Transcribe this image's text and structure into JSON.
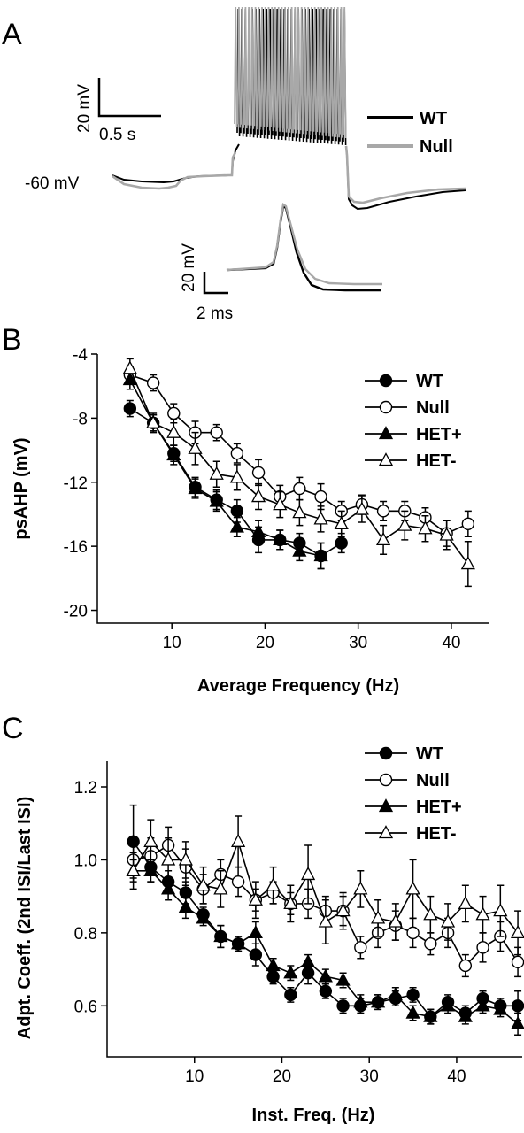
{
  "panels": {
    "A": "A",
    "B": "B",
    "C": "C"
  },
  "trace_panel": {
    "scale_bar_voltage": "20 mV",
    "scale_bar_time": "0.5 s",
    "resting_label": "-60 mV",
    "inset_scale_voltage": "20 mV",
    "inset_scale_time": "2 ms",
    "legend": [
      {
        "label": "WT",
        "color": "#000000"
      },
      {
        "label": "Null",
        "color": "#a8a8a8"
      }
    ]
  },
  "chart_data": [
    {
      "type": "line",
      "panel": "B",
      "xlabel": "Average Frequency (Hz)",
      "ylabel": "psAHP (mV)",
      "xlim": [
        2,
        44
      ],
      "ylim": [
        -20.8,
        -4
      ],
      "xticks": [
        10,
        20,
        30,
        40
      ],
      "yticks": [
        -4,
        -8,
        -12,
        -16,
        -20
      ],
      "grid": false,
      "legend_position": "top-right",
      "series": [
        {
          "name": "WT",
          "marker": "filled-circle",
          "x": [
            5.5,
            8,
            10.2,
            12.5,
            14.8,
            17,
            19.3,
            21.6,
            23.7,
            26,
            28.2
          ],
          "y": [
            -7.4,
            -8.3,
            -10.2,
            -12.3,
            -13.1,
            -13.8,
            -15.6,
            -15.6,
            -15.8,
            -16.6,
            -15.8
          ],
          "err": [
            0.5,
            0.5,
            0.5,
            0.6,
            0.6,
            0.7,
            0.8,
            0.6,
            0.6,
            0.8,
            0.6
          ]
        },
        {
          "name": "Null",
          "marker": "open-circle",
          "x": [
            5.5,
            8,
            10.2,
            12.5,
            14.8,
            17,
            19.3,
            21.6,
            23.7,
            26,
            28.2,
            30.4,
            32.7,
            35,
            37.2,
            39.5,
            41.8
          ],
          "y": [
            -5.3,
            -5.8,
            -7.7,
            -8.9,
            -8.9,
            -10.2,
            -11.4,
            -12.9,
            -12.4,
            -12.9,
            -13.8,
            -13.4,
            -13.8,
            -13.8,
            -14.2,
            -15.2,
            -14.6
          ],
          "err": [
            0.5,
            0.5,
            0.6,
            0.7,
            0.5,
            0.6,
            0.8,
            0.7,
            0.7,
            0.8,
            0.6,
            0.6,
            0.6,
            0.6,
            0.6,
            0.8,
            0.8
          ]
        },
        {
          "name": "HET+",
          "marker": "filled-triangle",
          "x": [
            5.5,
            8,
            10.2,
            12.5,
            14.8,
            17,
            19.3,
            21.6,
            23.7,
            26
          ],
          "y": [
            -5.6,
            -8.3,
            -10.3,
            -12.4,
            -13.2,
            -14.8,
            -15.1,
            -15.6,
            -16.3,
            -16.6
          ],
          "err": [
            0.6,
            0.5,
            0.6,
            0.6,
            0.6,
            0.6,
            0.7,
            0.6,
            0.6,
            0.8
          ]
        },
        {
          "name": "HET-",
          "marker": "open-triangle",
          "x": [
            5.5,
            8,
            10.2,
            12.5,
            14.8,
            17,
            19.3,
            21.6,
            23.7,
            26,
            28.2,
            30.4,
            32.7,
            35,
            37.2,
            39.5,
            41.8
          ],
          "y": [
            -4.9,
            -8.3,
            -8.9,
            -9.9,
            -11.5,
            -11.7,
            -12.9,
            -13.4,
            -13.9,
            -14.3,
            -14.6,
            -13.7,
            -15.6,
            -14.7,
            -14.9,
            -15.3,
            -17.1
          ],
          "err": [
            0.6,
            0.6,
            0.8,
            1.0,
            0.8,
            0.8,
            0.8,
            0.8,
            0.8,
            0.8,
            0.8,
            0.8,
            0.9,
            0.9,
            0.8,
            0.9,
            1.4
          ]
        }
      ]
    },
    {
      "type": "line",
      "panel": "C",
      "xlabel": "Inst. Freq. (Hz)",
      "ylabel": "Adpt. Coeff. (2nd ISI/Last ISI)",
      "xlim": [
        0,
        47.5
      ],
      "ylim": [
        0.46,
        1.2
      ],
      "xticks": [
        10,
        20,
        30,
        40
      ],
      "yticks": [
        0.6,
        0.8,
        1.0,
        1.2
      ],
      "grid": false,
      "legend_position": "top-right",
      "series": [
        {
          "name": "WT",
          "marker": "filled-circle",
          "x": [
            3,
            5,
            7,
            9,
            11,
            13,
            15,
            17,
            19,
            21,
            23,
            25,
            27,
            29,
            31,
            33,
            35,
            37,
            39,
            41,
            43,
            45,
            47
          ],
          "y": [
            1.05,
            0.98,
            0.94,
            0.91,
            0.85,
            0.79,
            0.77,
            0.74,
            0.68,
            0.63,
            0.69,
            0.64,
            0.6,
            0.6,
            0.61,
            0.62,
            0.63,
            0.57,
            0.61,
            0.58,
            0.62,
            0.6,
            0.6
          ],
          "err": [
            0.1,
            0.04,
            0.03,
            0.03,
            0.02,
            0.03,
            0.02,
            0.03,
            0.02,
            0.02,
            0.03,
            0.02,
            0.02,
            0.02,
            0.02,
            0.02,
            0.02,
            0.02,
            0.02,
            0.02,
            0.02,
            0.02,
            0.04
          ]
        },
        {
          "name": "Null",
          "marker": "open-circle",
          "x": [
            3,
            5,
            7,
            9,
            11,
            13,
            15,
            17,
            19,
            21,
            23,
            25,
            27,
            29,
            31,
            33,
            35,
            37,
            39,
            41,
            43,
            45,
            47
          ],
          "y": [
            1.0,
            1.01,
            1.04,
            0.98,
            0.92,
            0.96,
            0.94,
            0.89,
            0.91,
            0.88,
            0.88,
            0.86,
            0.86,
            0.76,
            0.8,
            0.82,
            0.8,
            0.77,
            0.8,
            0.71,
            0.76,
            0.79,
            0.72
          ],
          "err": [
            0.04,
            0.05,
            0.05,
            0.05,
            0.04,
            0.04,
            0.04,
            0.03,
            0.03,
            0.03,
            0.04,
            0.04,
            0.04,
            0.03,
            0.04,
            0.04,
            0.04,
            0.03,
            0.04,
            0.03,
            0.04,
            0.04,
            0.04
          ]
        },
        {
          "name": "HET+",
          "marker": "filled-triangle",
          "x": [
            3,
            5,
            7,
            9,
            11,
            13,
            15,
            17,
            19,
            21,
            23,
            25,
            27,
            29,
            31,
            33,
            35,
            37,
            39,
            41,
            43,
            45,
            47
          ],
          "y": [
            0.97,
            0.97,
            0.92,
            0.87,
            0.84,
            0.79,
            0.77,
            0.8,
            0.71,
            0.69,
            0.72,
            0.68,
            0.67,
            0.61,
            0.61,
            0.63,
            0.58,
            0.57,
            0.6,
            0.57,
            0.6,
            0.59,
            0.55
          ],
          "err": [
            0.03,
            0.03,
            0.03,
            0.03,
            0.02,
            0.03,
            0.02,
            0.03,
            0.02,
            0.02,
            0.02,
            0.02,
            0.02,
            0.02,
            0.02,
            0.02,
            0.02,
            0.02,
            0.02,
            0.02,
            0.02,
            0.02,
            0.03
          ]
        },
        {
          "name": "HET-",
          "marker": "open-triangle",
          "x": [
            3,
            5,
            7,
            9,
            11,
            13,
            15,
            17,
            19,
            21,
            23,
            25,
            27,
            29,
            31,
            33,
            35,
            37,
            39,
            41,
            43,
            45,
            47
          ],
          "y": [
            0.97,
            1.05,
            1.0,
            1.0,
            0.93,
            0.92,
            1.05,
            0.89,
            0.93,
            0.88,
            0.96,
            0.83,
            0.86,
            0.92,
            0.84,
            0.83,
            0.92,
            0.85,
            0.83,
            0.88,
            0.85,
            0.86,
            0.8
          ],
          "err": [
            0.05,
            0.06,
            0.06,
            0.05,
            0.05,
            0.05,
            0.07,
            0.05,
            0.05,
            0.05,
            0.08,
            0.06,
            0.05,
            0.05,
            0.05,
            0.05,
            0.08,
            0.05,
            0.05,
            0.05,
            0.05,
            0.07,
            0.06
          ]
        }
      ]
    }
  ]
}
